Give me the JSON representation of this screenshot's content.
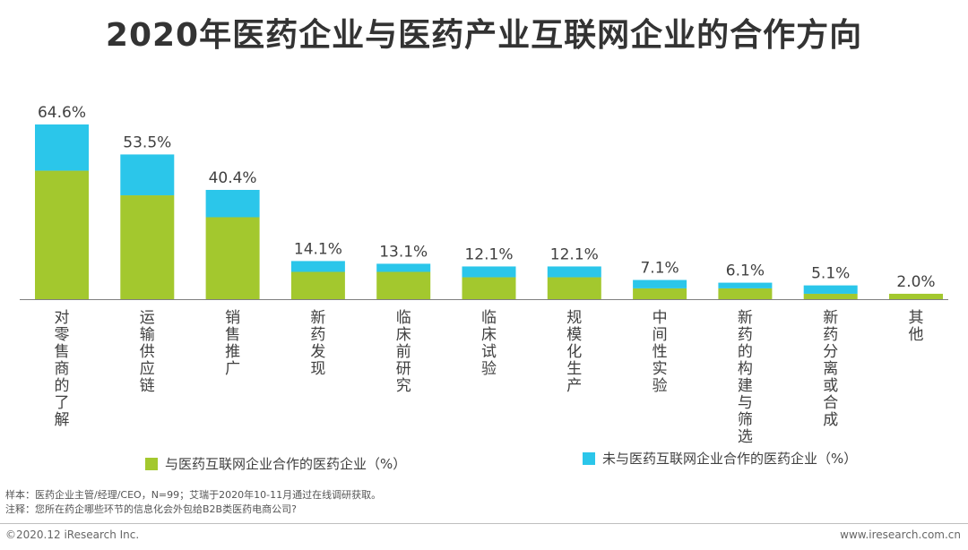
{
  "title": "2020年医药企业与医药产业互联网企业的合作方向",
  "colors": {
    "cooperated": "#a3c82e",
    "not_cooperated": "#2bc6ea",
    "axis": "#7f7f7f",
    "text": "#404040"
  },
  "chart_data": {
    "type": "bar",
    "stacked": true,
    "title": "2020年医药企业与医药产业互联网企业的合作方向",
    "categories": [
      "对零售商的了解",
      "运输供应链",
      "销售推广",
      "新药发现",
      "临床前研究",
      "临床试验",
      "规模化生产",
      "中间性实验",
      "新药的构建与筛选",
      "新药分离或合成",
      "其他"
    ],
    "totals_labels": [
      "64.6%",
      "53.5%",
      "40.4%",
      "14.1%",
      "13.1%",
      "12.1%",
      "12.1%",
      "7.1%",
      "6.1%",
      "5.1%",
      "2.0%"
    ],
    "series": [
      {
        "name": "与医药互联网企业合作的医药企业（%）",
        "color": "#a3c82e",
        "values": [
          47.5,
          38.4,
          30.3,
          10.1,
          10.1,
          8.1,
          8.1,
          4.0,
          4.0,
          2.0,
          2.0
        ]
      },
      {
        "name": "未与医药互联网企业合作的医药企业（%）",
        "color": "#2bc6ea",
        "values": [
          17.1,
          15.1,
          10.1,
          4.0,
          3.0,
          4.0,
          4.0,
          3.1,
          2.1,
          3.1,
          0.0
        ]
      }
    ],
    "ylim": [
      0,
      70
    ],
    "grid": false,
    "legend_position": "bottom"
  },
  "notes": {
    "sample": "样本：医药企业主管/经理/CEO，N=99；艾瑞于2020年10-11月通过在线调研获取。",
    "remark": "注释：您所在药企哪些环节的信息化会外包给B2B类医药电商公司?"
  },
  "footer": {
    "copyright": "©2020.12 iResearch Inc.",
    "website": "www.iresearch.com.cn"
  }
}
